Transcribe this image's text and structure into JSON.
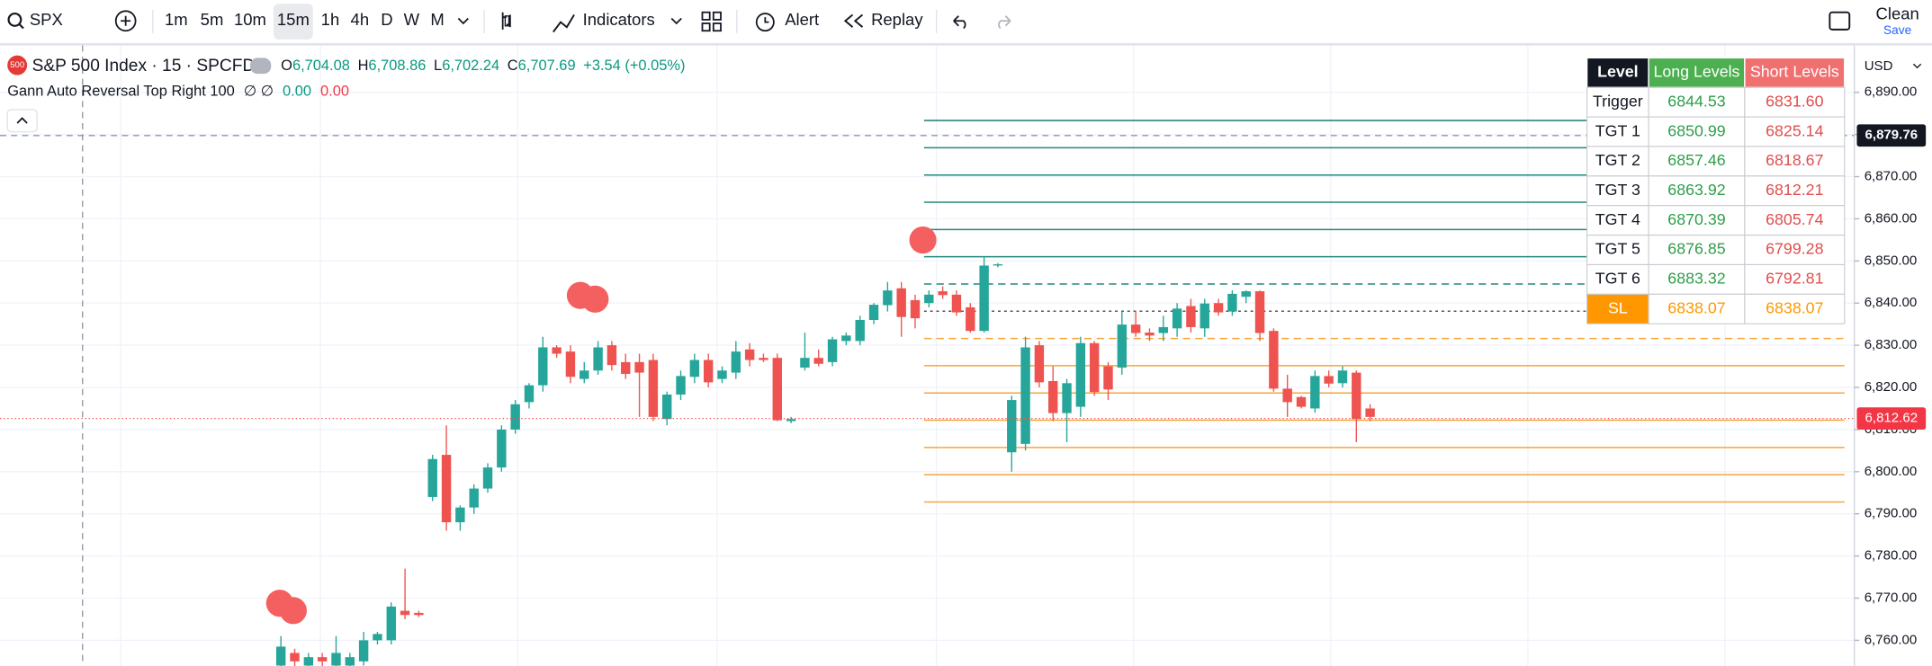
{
  "toolbar": {
    "symbol": "SPX",
    "intervals": [
      "1m",
      "5m",
      "10m",
      "15m",
      "1h",
      "4h",
      "D",
      "W",
      "M"
    ],
    "indicators": "Indicators",
    "alert": "Alert",
    "replay": "Replay",
    "layout": "Clean",
    "save": "Save"
  },
  "legend": {
    "badge": "500",
    "title": "S&P 500 Index · 15 · SPCFD",
    "ohlc": [
      {
        "label": "O",
        "value": "6,704.08"
      },
      {
        "label": "H",
        "value": "6,708.86"
      },
      {
        "label": "L",
        "value": "6,702.24"
      },
      {
        "label": "C",
        "value": "6,707.69"
      }
    ],
    "change": "+3.54 (+0.05%)",
    "indicator": "Gann Auto Reversal Top Right 100",
    "indicator_params": "∅ ∅",
    "indicator_values": [
      "0.00",
      "0.00"
    ]
  },
  "chart_data": {
    "type": "candlestick",
    "currency": "USD",
    "ylim": [
      6753.9,
      6901.1
    ],
    "yticks": [
      {
        "value": 6890,
        "label": "6,890.00"
      },
      {
        "value": 6880,
        "label": "6,880.00"
      },
      {
        "value": 6870,
        "label": "6,870.00"
      },
      {
        "value": 6860,
        "label": "6,860.00"
      },
      {
        "value": 6850,
        "label": "6,850.00"
      },
      {
        "value": 6840,
        "label": "6,840.00"
      },
      {
        "value": 6830,
        "label": "6,830.00"
      },
      {
        "value": 6820,
        "label": "6,820.00"
      },
      {
        "value": 6810,
        "label": "6,810.00"
      },
      {
        "value": 6800,
        "label": "6,800.00"
      },
      {
        "value": 6790,
        "label": "6,790.00"
      },
      {
        "value": 6780,
        "label": "6,780.00"
      },
      {
        "value": 6770,
        "label": "6,770.00"
      },
      {
        "value": 6760,
        "label": "6,760.00"
      }
    ],
    "last_price": {
      "value": 6812.62,
      "label": "6,812.62"
    },
    "crosshair": {
      "value": 6879.76,
      "label": "6,879.76"
    },
    "candles": [
      [
        6754,
        6761,
        6752,
        6758.5
      ],
      [
        6757,
        6758,
        6752,
        6755
      ],
      [
        6754,
        6757,
        6752,
        6756
      ],
      [
        6756,
        6757,
        6753,
        6755
      ],
      [
        6754,
        6761,
        6752,
        6757
      ],
      [
        6754,
        6757,
        6752,
        6756
      ],
      [
        6755,
        6762,
        6754,
        6760
      ],
      [
        6760,
        6762,
        6759,
        6761.5
      ],
      [
        6760,
        6769,
        6759,
        6768
      ],
      [
        6767,
        6777,
        6765,
        6766
      ],
      [
        6766.5,
        6767,
        6765.5,
        6766
      ],
      [
        6794,
        6804,
        6793,
        6803
      ],
      [
        6804,
        6811,
        6786,
        6788
      ],
      [
        6788,
        6792,
        6786,
        6791.5
      ],
      [
        6791.5,
        6797,
        6790,
        6796
      ],
      [
        6796,
        6802,
        6795,
        6801
      ],
      [
        6801,
        6811,
        6800,
        6810
      ],
      [
        6810,
        6817,
        6809,
        6816
      ],
      [
        6816.5,
        6821,
        6815,
        6820.5
      ],
      [
        6820.5,
        6832,
        6819,
        6829.5
      ],
      [
        6829.5,
        6830,
        6827,
        6828
      ],
      [
        6828.5,
        6830,
        6821,
        6822.5
      ],
      [
        6822,
        6826,
        6821,
        6824
      ],
      [
        6824,
        6831,
        6823,
        6829.5
      ],
      [
        6830,
        6831,
        6824,
        6825.3
      ],
      [
        6826,
        6828,
        6822,
        6823.2
      ],
      [
        6826,
        6828,
        6813,
        6823.5
      ],
      [
        6826.5,
        6828,
        6812,
        6813
      ],
      [
        6812.5,
        6819,
        6811,
        6818.3
      ],
      [
        6818.3,
        6824,
        6817,
        6822.7
      ],
      [
        6822.5,
        6828,
        6821,
        6826.5
      ],
      [
        6826.5,
        6828,
        6820,
        6821.2
      ],
      [
        6822,
        6825,
        6821,
        6824
      ],
      [
        6823.5,
        6831,
        6822,
        6828.5
      ],
      [
        6829,
        6830.5,
        6825,
        6826.5
      ],
      [
        6827,
        6828,
        6826,
        6826.5
      ],
      [
        6827,
        6828,
        6812,
        6812.2
      ],
      [
        6812,
        6813,
        6811.5,
        6812.5
      ],
      [
        6824.7,
        6833,
        6824,
        6827
      ],
      [
        6827,
        6829,
        6825,
        6825.6
      ],
      [
        6826,
        6832,
        6825,
        6831.4
      ],
      [
        6831,
        6833,
        6830,
        6832.3
      ],
      [
        6831,
        6837,
        6830,
        6836
      ],
      [
        6836,
        6840,
        6835,
        6839.6
      ],
      [
        6839.5,
        6845,
        6838,
        6843
      ],
      [
        6843.5,
        6845,
        6832,
        6836.7
      ],
      [
        6840.7,
        6842,
        6834,
        6836.4
      ],
      [
        6840,
        6843,
        6839,
        6842
      ],
      [
        6842.8,
        6844,
        6841,
        6841.9
      ],
      [
        6842,
        6843,
        6837,
        6837.8
      ],
      [
        6839,
        6840,
        6833,
        6833.4
      ],
      [
        6833.4,
        6851,
        6833,
        6848.9
      ],
      [
        6849,
        6849.5,
        6848.5,
        6849.2
      ],
      [
        6804.6,
        6818,
        6800,
        6817
      ],
      [
        6806.6,
        6832,
        6805,
        6829.5
      ],
      [
        6830,
        6831,
        6820,
        6821.2
      ],
      [
        6821.5,
        6825,
        6812,
        6813.9
      ],
      [
        6813.9,
        6822,
        6807,
        6821
      ],
      [
        6815.4,
        6832,
        6813,
        6830.5
      ],
      [
        6830.5,
        6831,
        6818,
        6818.9
      ],
      [
        6825,
        6826,
        6817,
        6819.5
      ],
      [
        6824.7,
        6838,
        6823,
        6834.9
      ],
      [
        6834.9,
        6838,
        6832,
        6832.9
      ],
      [
        6833,
        6834,
        6831,
        6832.3
      ],
      [
        6832.9,
        6837,
        6831,
        6834.3
      ],
      [
        6834,
        6840,
        6832,
        6838.7
      ],
      [
        6839.3,
        6841,
        6833,
        6834.3
      ],
      [
        6834,
        6841,
        6832,
        6839.9
      ],
      [
        6840,
        6841,
        6837,
        6837.8
      ],
      [
        6838,
        6843,
        6837,
        6842.2
      ],
      [
        6841.5,
        6843,
        6840,
        6842.8
      ],
      [
        6842.8,
        6843,
        6831,
        6832.9
      ],
      [
        6833.4,
        6834,
        6819,
        6819.7
      ],
      [
        6819.7,
        6823,
        6813,
        6816.5
      ],
      [
        6817.7,
        6818,
        6815,
        6815.4
      ],
      [
        6815,
        6824,
        6814,
        6822.7
      ],
      [
        6822.7,
        6824,
        6820,
        6820.9
      ],
      [
        6821,
        6825,
        6820,
        6824
      ],
      [
        6823.5,
        6824,
        6807,
        6812.5
      ],
      [
        6815,
        6816,
        6812,
        6813
      ]
    ]
  },
  "table": {
    "header": [
      "Level",
      "Long Levels",
      "Short Levels"
    ],
    "rows": [
      [
        "Trigger",
        "6844.53",
        "6831.60"
      ],
      [
        "TGT 1",
        "6850.99",
        "6825.14"
      ],
      [
        "TGT 2",
        "6857.46",
        "6818.67"
      ],
      [
        "TGT 3",
        "6863.92",
        "6812.21"
      ],
      [
        "TGT 4",
        "6870.39",
        "6805.74"
      ],
      [
        "TGT 5",
        "6876.85",
        "6799.28"
      ],
      [
        "TGT 6",
        "6883.32",
        "6792.81"
      ],
      [
        "SL",
        "6838.07",
        "6838.07"
      ]
    ]
  }
}
